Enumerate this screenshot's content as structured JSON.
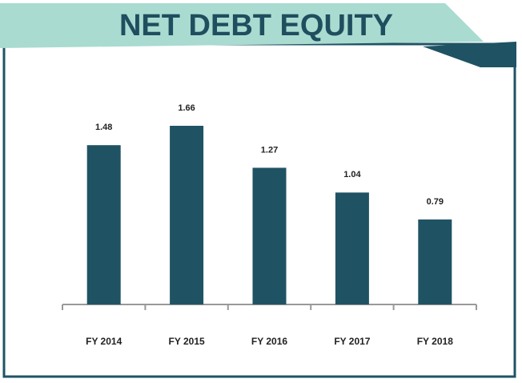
{
  "chart_data": {
    "type": "bar",
    "title": "NET DEBT EQUITY",
    "categories": [
      "FY 2014",
      "FY 2015",
      "FY 2016",
      "FY 2017",
      "FY 2018"
    ],
    "values": [
      1.48,
      1.66,
      1.27,
      1.04,
      0.79
    ],
    "color": "#1f5364"
  }
}
